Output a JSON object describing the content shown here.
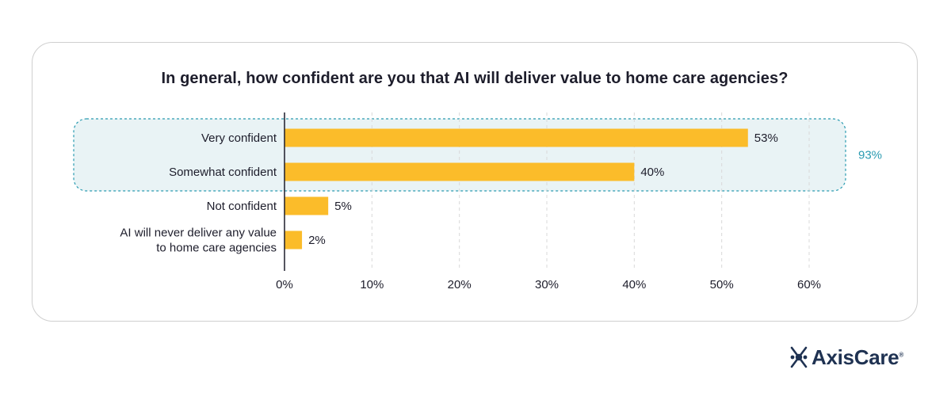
{
  "colors": {
    "bar": "#fbbc2a",
    "highlight_fill": "#e9f3f5",
    "highlight_stroke": "#2a9bb1",
    "grid": "#d9d9d9",
    "axis": "#1d1d2b",
    "group_label": "#2a9bb1"
  },
  "chart_data": {
    "type": "bar",
    "orientation": "horizontal",
    "title": "In general, how confident are you that AI will deliver value to home care agencies?",
    "categories": [
      [
        "Very confident"
      ],
      [
        "Somewhat confident"
      ],
      [
        "Not confident"
      ],
      [
        "AI will never deliver any value",
        "to home care agencies"
      ]
    ],
    "values": [
      53,
      40,
      5,
      2
    ],
    "value_labels": [
      "53%",
      "40%",
      "5%",
      "2%"
    ],
    "xlim": [
      0,
      60
    ],
    "xticks": [
      0,
      10,
      20,
      30,
      40,
      50,
      60
    ],
    "xtick_labels": [
      "0%",
      "10%",
      "20%",
      "30%",
      "40%",
      "50%",
      "60%"
    ],
    "grid": "vertical-dashed",
    "highlight_group": {
      "categories": [
        0,
        1
      ],
      "label": "93%"
    }
  },
  "brand": {
    "logo_text": "AxisCare",
    "logo_mark": "axiscare-logo-icon",
    "registered": "®"
  }
}
